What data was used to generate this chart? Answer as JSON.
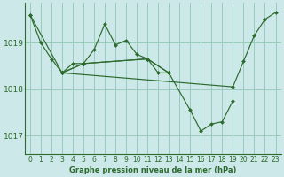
{
  "bg_color": "#cce8e8",
  "grid_color": "#99ccbb",
  "line_color": "#2d6a2d",
  "title": "Graphe pression niveau de la mer (hPa)",
  "xlim": [
    -0.5,
    23.5
  ],
  "ylim": [
    1016.6,
    1019.85
  ],
  "yticks": [
    1017,
    1018,
    1019
  ],
  "xticks": [
    0,
    1,
    2,
    3,
    4,
    5,
    6,
    7,
    8,
    9,
    10,
    11,
    12,
    13,
    14,
    15,
    16,
    17,
    18,
    19,
    20,
    21,
    22,
    23
  ],
  "series": [
    {
      "x": [
        0,
        1,
        2,
        3,
        4,
        5,
        6,
        7,
        8,
        9,
        10,
        11,
        12,
        13
      ],
      "y": [
        1019.6,
        1019.0,
        1018.65,
        1018.35,
        1018.55,
        1018.55,
        1018.85,
        1019.4,
        1018.95,
        1019.05,
        1018.75,
        1018.65,
        1018.35,
        1018.35
      ]
    },
    {
      "x": [
        0,
        3,
        5,
        11,
        13
      ],
      "y": [
        1019.6,
        1018.35,
        1018.55,
        1018.65,
        1018.35
      ]
    },
    {
      "x": [
        3,
        5,
        11,
        13,
        15,
        16,
        17,
        18,
        19
      ],
      "y": [
        1018.35,
        1018.55,
        1018.65,
        1018.35,
        1017.55,
        1017.1,
        1017.25,
        1017.3,
        1017.75
      ]
    },
    {
      "x": [
        3,
        19,
        20,
        21,
        22,
        23
      ],
      "y": [
        1018.35,
        1018.05,
        1018.6,
        1019.15,
        1019.5,
        1019.65
      ]
    }
  ]
}
